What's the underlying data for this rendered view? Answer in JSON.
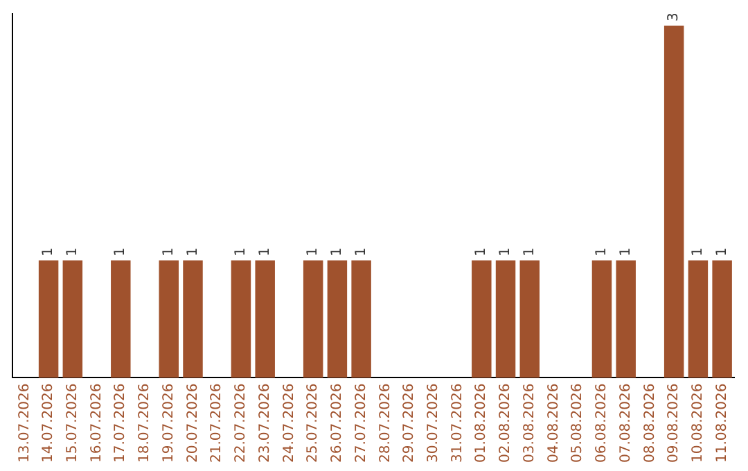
{
  "chart_data": {
    "type": "bar",
    "categories": [
      "13.07.2026",
      "14.07.2026",
      "15.07.2026",
      "16.07.2026",
      "17.07.2026",
      "18.07.2026",
      "19.07.2026",
      "20.07.2026",
      "21.07.2026",
      "22.07.2026",
      "23.07.2026",
      "24.07.2026",
      "25.07.2026",
      "26.07.2026",
      "27.07.2026",
      "28.07.2026",
      "29.07.2026",
      "30.07.2026",
      "31.07.2026",
      "01.08.2026",
      "02.08.2026",
      "03.08.2026",
      "04.08.2026",
      "05.08.2026",
      "06.08.2026",
      "07.08.2026",
      "08.08.2026",
      "09.08.2026",
      "10.08.2026",
      "11.08.2026"
    ],
    "values": [
      0,
      1,
      1,
      0,
      1,
      0,
      1,
      1,
      0,
      1,
      1,
      0,
      1,
      1,
      1,
      0,
      0,
      0,
      0,
      1,
      1,
      1,
      0,
      0,
      1,
      1,
      0,
      3,
      1,
      1
    ],
    "value_labels": [
      null,
      "1",
      "1",
      null,
      "1",
      null,
      "1",
      "1",
      null,
      "1",
      "1",
      null,
      "1",
      "1",
      "1",
      null,
      null,
      null,
      null,
      "1",
      "1",
      "1",
      null,
      null,
      "1",
      "1",
      null,
      "3",
      "1",
      "1"
    ],
    "color": "#a0522d",
    "ylim": [
      0,
      3.1
    ],
    "tick_labels": "x",
    "grid": false,
    "legend": false
  }
}
